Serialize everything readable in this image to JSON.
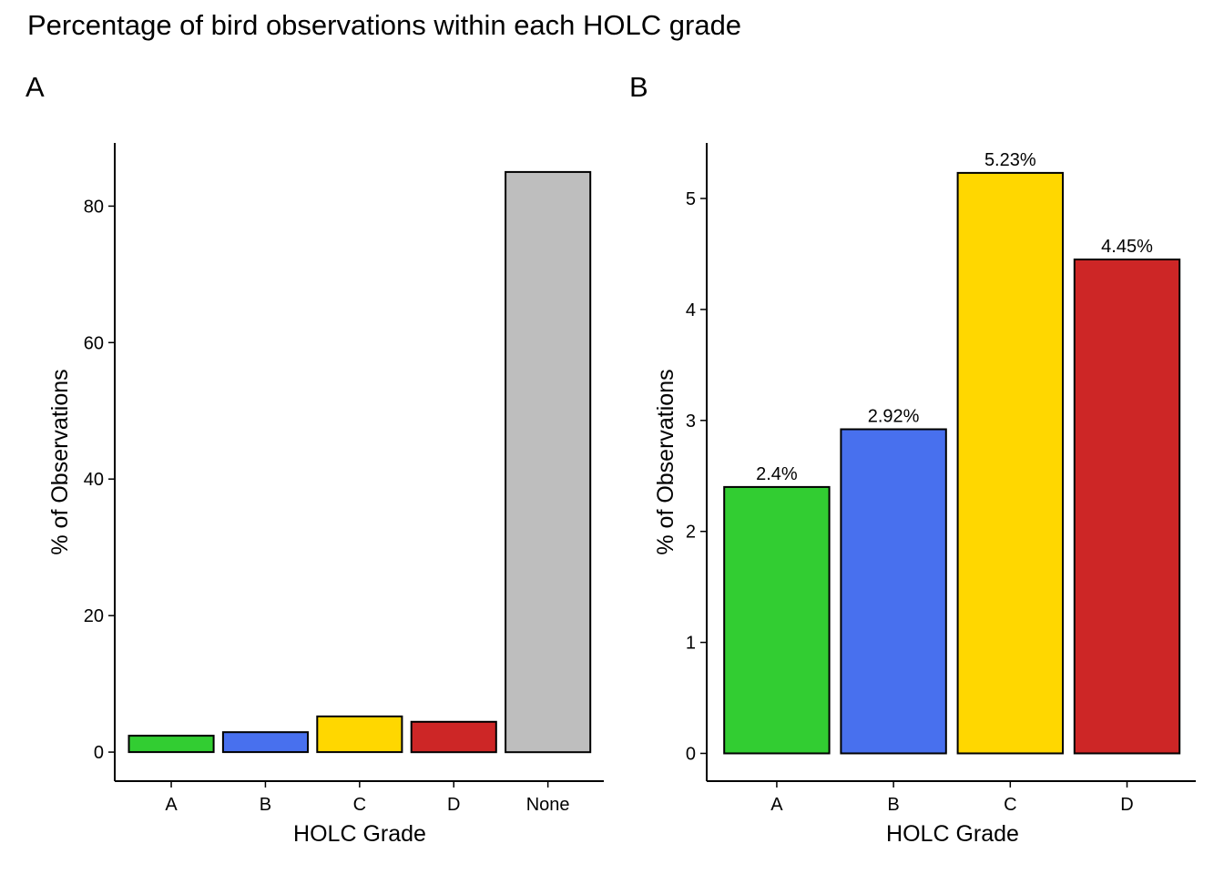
{
  "title": "Percentage of bird observations within each HOLC grade",
  "colors": {
    "A": "#32CD32",
    "B": "#4870EE",
    "C": "#FFD700",
    "D": "#CD2626",
    "None": "#BEBEBE",
    "outline": "#000000"
  },
  "chart_data": [
    {
      "panel": "A",
      "type": "bar",
      "categories": [
        "A",
        "B",
        "C",
        "D",
        "None"
      ],
      "values": [
        2.4,
        2.92,
        5.23,
        4.45,
        85.0
      ],
      "xlabel": "HOLC Grade",
      "ylabel": "% of Observations",
      "yticks": [
        0,
        20,
        40,
        60,
        80
      ],
      "ylim": [
        -4.25,
        89.25
      ],
      "data_labels": [],
      "legend": "none",
      "grid": false
    },
    {
      "panel": "B",
      "type": "bar",
      "categories": [
        "A",
        "B",
        "C",
        "D"
      ],
      "values": [
        2.4,
        2.92,
        5.23,
        4.45
      ],
      "xlabel": "HOLC Grade",
      "ylabel": "% of Observations",
      "yticks": [
        0,
        1,
        2,
        3,
        4,
        5
      ],
      "ylim": [
        -0.25,
        5.5
      ],
      "data_labels": [
        "2.4%",
        "2.92%",
        "5.23%",
        "4.45%"
      ],
      "legend": "none",
      "grid": false
    }
  ]
}
